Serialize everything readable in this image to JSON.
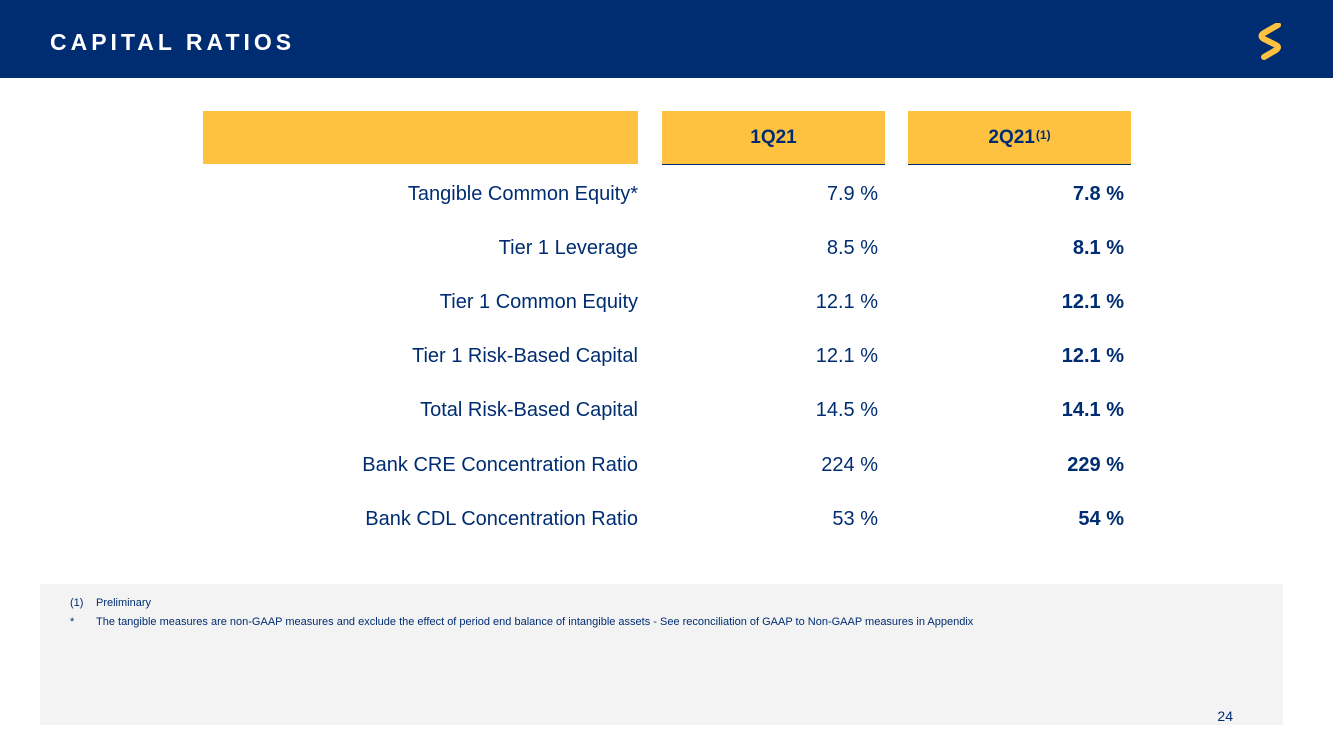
{
  "header": {
    "title": "CAPITAL RATIOS",
    "background_color": "#002d72",
    "logo_icon": "s-logo-icon",
    "logo_color": "#fec240"
  },
  "table": {
    "header_color": "#fec240",
    "columns": [
      "1Q21",
      "2Q21"
    ],
    "column_2_superscript": "(1)",
    "rows": [
      {
        "label": "Tangible Common Equity*",
        "q1": "7.9 %",
        "q2": "7.8 %"
      },
      {
        "label": "Tier 1 Leverage",
        "q1": "8.5 %",
        "q2": "8.1 %"
      },
      {
        "label": "Tier 1 Common Equity",
        "q1": "12.1 %",
        "q2": "12.1 %"
      },
      {
        "label": "Tier 1 Risk-Based Capital",
        "q1": "12.1 %",
        "q2": "12.1 %"
      },
      {
        "label": "Total Risk-Based Capital",
        "q1": "14.5 %",
        "q2": "14.1 %"
      },
      {
        "label": "Bank CRE Concentration Ratio",
        "q1": "224 %",
        "q2": "229 %"
      },
      {
        "label": "Bank CDL Concentration Ratio",
        "q1": "53 %",
        "q2": "54 %"
      }
    ]
  },
  "footnotes": [
    {
      "marker": "(1)",
      "text": "Preliminary"
    },
    {
      "marker": "*",
      "text": "The tangible measures are non-GAAP measures and exclude the effect of period end balance of intangible assets - See reconciliation of GAAP to Non-GAAP measures in Appendix"
    }
  ],
  "page_number": "24"
}
